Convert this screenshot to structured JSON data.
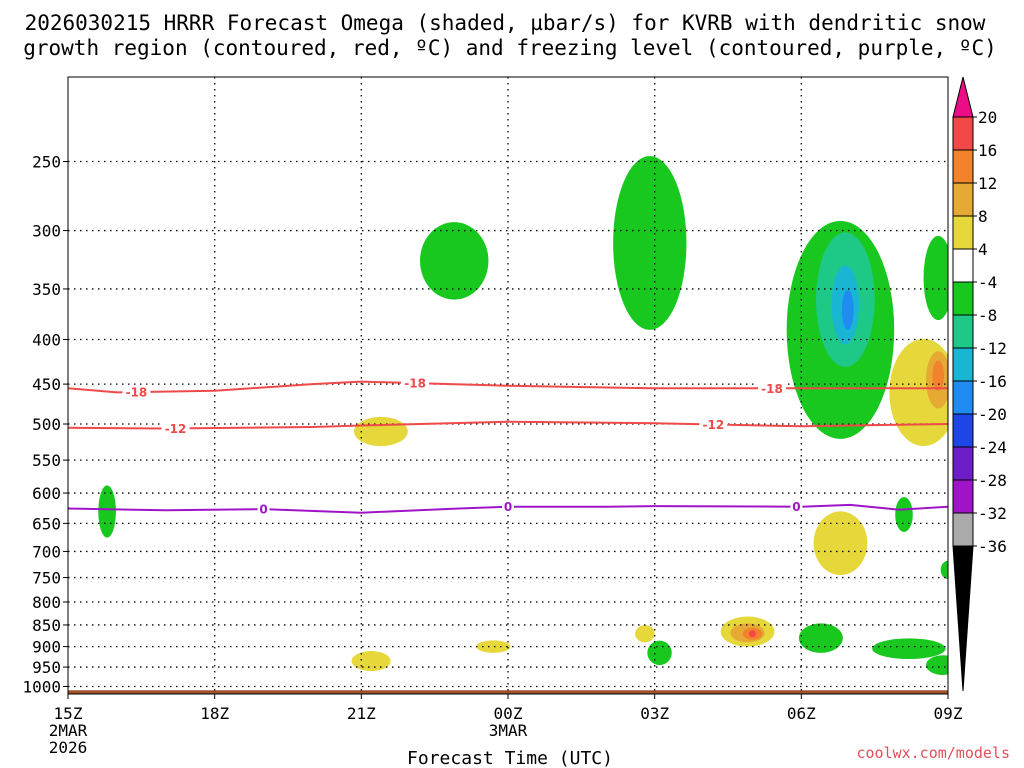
{
  "chart_data": {
    "type": "contour",
    "title_line1": "2026030215 HRRR Forecast Omega (shaded, µbar/s) for KVRB with dendritic snow",
    "title_line2": "growth region (contoured, red, ºC) and freezing level (contoured, purple, ºC)",
    "xlabel": "Forecast Time (UTC)",
    "credit": "coolwx.com/models",
    "x_range_hours": [
      0,
      18
    ],
    "x_ticks": [
      {
        "hour": 0,
        "label": "15Z",
        "sub1": "2MAR",
        "sub2": "2026"
      },
      {
        "hour": 3,
        "label": "18Z"
      },
      {
        "hour": 6,
        "label": "21Z"
      },
      {
        "hour": 9,
        "label": "00Z",
        "sub1": "3MAR"
      },
      {
        "hour": 12,
        "label": "03Z"
      },
      {
        "hour": 15,
        "label": "06Z"
      },
      {
        "hour": 18,
        "label": "09Z"
      }
    ],
    "y_axis_pressure_hpa": [
      200,
      1020
    ],
    "y_ticks": [
      250,
      300,
      350,
      400,
      450,
      500,
      550,
      600,
      650,
      700,
      750,
      800,
      850,
      900,
      950,
      1000
    ],
    "colorbar": {
      "labels": [
        "20",
        "16",
        "12",
        "8",
        "4",
        "-4",
        "-8",
        "-12",
        "-16",
        "-20",
        "-24",
        "-28",
        "-32",
        "-36"
      ],
      "colors": [
        "#ec0c86",
        "#f24848",
        "#f2822c",
        "#e6aa34",
        "#e6d83a",
        "#ffffff",
        "#19c81e",
        "#1ec887",
        "#19b6d4",
        "#1e8cf0",
        "#1e46e6",
        "#6e1ec8",
        "#a014c8",
        "#aaaaaa",
        "#000000"
      ]
    },
    "omega_colors": {
      "g": "#19c81e",
      "t": "#1ec887",
      "c": "#19b6d4",
      "b": "#1e8cf0",
      "y": "#e6d83a",
      "o": "#e6aa34",
      "r": "#f2822c",
      "rr": "#f24848"
    },
    "omega_blobs": [
      {
        "c": "g",
        "h": 0.8,
        "p": 630,
        "dh": 0.18,
        "dp": 45
      },
      {
        "c": "g",
        "h": 7.9,
        "p": 325,
        "dh": 0.7,
        "dp": 35
      },
      {
        "c": "g",
        "h": 11.9,
        "p": 310,
        "dh": 0.75,
        "dp": 80
      },
      {
        "c": "g",
        "h": 15.8,
        "p": 390,
        "dh": 1.1,
        "dp": 130
      },
      {
        "c": "t",
        "h": 15.9,
        "p": 360,
        "dh": 0.6,
        "dp": 70
      },
      {
        "c": "c",
        "h": 15.9,
        "p": 365,
        "dh": 0.28,
        "dp": 40
      },
      {
        "c": "b",
        "h": 15.95,
        "p": 370,
        "dh": 0.12,
        "dp": 20
      },
      {
        "c": "g",
        "h": 17.8,
        "p": 340,
        "dh": 0.3,
        "dp": 40
      },
      {
        "c": "y",
        "h": 6.4,
        "p": 510,
        "dh": 0.55,
        "dp": 20
      },
      {
        "c": "y",
        "h": 17.5,
        "p": 460,
        "dh": 0.7,
        "dp": 70
      },
      {
        "c": "o",
        "h": 17.8,
        "p": 445,
        "dh": 0.25,
        "dp": 35
      },
      {
        "c": "r",
        "h": 17.8,
        "p": 440,
        "dh": 0.12,
        "dp": 18
      },
      {
        "c": "y",
        "h": 15.8,
        "p": 685,
        "dh": 0.55,
        "dp": 60
      },
      {
        "c": "g",
        "h": 17.1,
        "p": 635,
        "dh": 0.18,
        "dp": 30
      },
      {
        "c": "g",
        "h": 18.0,
        "p": 735,
        "dh": 0.15,
        "dp": 18
      },
      {
        "c": "y",
        "h": 11.8,
        "p": 870,
        "dh": 0.2,
        "dp": 20
      },
      {
        "c": "g",
        "h": 12.1,
        "p": 915,
        "dh": 0.25,
        "dp": 30
      },
      {
        "c": "y",
        "h": 13.9,
        "p": 865,
        "dh": 0.55,
        "dp": 35
      },
      {
        "c": "o",
        "h": 13.9,
        "p": 868,
        "dh": 0.35,
        "dp": 22
      },
      {
        "c": "r",
        "h": 14.0,
        "p": 870,
        "dh": 0.2,
        "dp": 14
      },
      {
        "c": "rr",
        "h": 14.0,
        "p": 870,
        "dh": 0.07,
        "dp": 8
      },
      {
        "c": "g",
        "h": 15.4,
        "p": 880,
        "dh": 0.45,
        "dp": 35
      },
      {
        "c": "g",
        "h": 17.2,
        "p": 905,
        "dh": 0.75,
        "dp": 25
      },
      {
        "c": "g",
        "h": 17.9,
        "p": 945,
        "dh": 0.35,
        "dp": 25
      },
      {
        "c": "y",
        "h": 6.2,
        "p": 935,
        "dh": 0.4,
        "dp": 25
      },
      {
        "c": "y",
        "h": 8.7,
        "p": 900,
        "dh": 0.35,
        "dp": 15
      }
    ],
    "contours": [
      {
        "name": "contour-minus18",
        "color": "#ef4a4a",
        "label": "-18",
        "points": [
          [
            0,
            455
          ],
          [
            1,
            460
          ],
          [
            3,
            458
          ],
          [
            5,
            450
          ],
          [
            6,
            447
          ],
          [
            9,
            452
          ],
          [
            12,
            455
          ],
          [
            15,
            455
          ],
          [
            18,
            455
          ]
        ],
        "label_hours": [
          1.4,
          7.1,
          14.4
        ]
      },
      {
        "name": "contour-minus12",
        "color": "#ef4a4a",
        "label": "-12",
        "points": [
          [
            0,
            505
          ],
          [
            2,
            506
          ],
          [
            5,
            504
          ],
          [
            6,
            502
          ],
          [
            9,
            497
          ],
          [
            12,
            499
          ],
          [
            15,
            503
          ],
          [
            18,
            500
          ]
        ],
        "label_hours": [
          2.2,
          13.2
        ]
      },
      {
        "name": "contour-freezing-zero",
        "color": "#a014c8",
        "label": "0",
        "points": [
          [
            0,
            625
          ],
          [
            2,
            628
          ],
          [
            4,
            626
          ],
          [
            6,
            632
          ],
          [
            8,
            625
          ],
          [
            9,
            622
          ],
          [
            11,
            622
          ],
          [
            12,
            621
          ],
          [
            15,
            622
          ],
          [
            16,
            619
          ],
          [
            17,
            627
          ],
          [
            18,
            622
          ]
        ],
        "label_hours": [
          4.0,
          9.0,
          14.9
        ]
      }
    ],
    "surface_hpa": 1010
  }
}
